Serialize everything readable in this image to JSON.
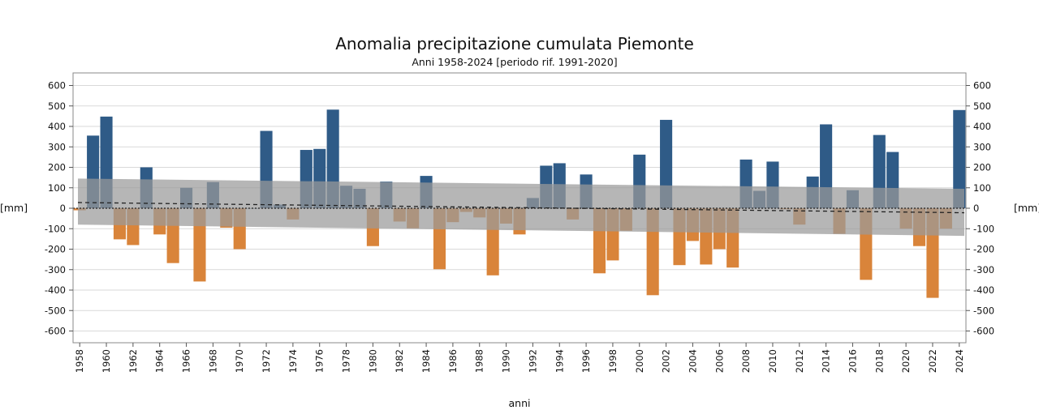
{
  "chart_data": {
    "type": "bar",
    "title": "Anomalia precipitazione cumulata Piemonte",
    "subtitle": "Anni 1958-2024  [periodo rif. 1991-2020]",
    "ylabel": "[mm]",
    "xlabel": "anni",
    "ylim": [
      -670,
      670
    ],
    "yticks": [
      600,
      500,
      400,
      300,
      200,
      100,
      0,
      -100,
      -200,
      -300,
      -400,
      -500,
      -600
    ],
    "grid": true,
    "x": [
      1958,
      1959,
      1960,
      1961,
      1962,
      1963,
      1964,
      1965,
      1966,
      1967,
      1968,
      1969,
      1970,
      1971,
      1972,
      1973,
      1974,
      1975,
      1976,
      1977,
      1978,
      1979,
      1980,
      1981,
      1982,
      1983,
      1984,
      1985,
      1986,
      1987,
      1988,
      1989,
      1990,
      1991,
      1992,
      1993,
      1994,
      1995,
      1996,
      1997,
      1998,
      1999,
      2000,
      2001,
      2002,
      2003,
      2004,
      2005,
      2006,
      2007,
      2008,
      2009,
      2010,
      2011,
      2012,
      2013,
      2014,
      2015,
      2016,
      2017,
      2018,
      2019,
      2020,
      2021,
      2022,
      2023,
      2024
    ],
    "xtick_labels": [
      "1958",
      "1960",
      "1962",
      "1964",
      "1966",
      "1968",
      "1970",
      "1972",
      "1974",
      "1976",
      "1978",
      "1980",
      "1982",
      "1984",
      "1986",
      "1988",
      "1990",
      "1992",
      "1994",
      "1996",
      "1998",
      "2000",
      "2002",
      "2004",
      "2006",
      "2008",
      "2010",
      "2012",
      "2014",
      "2016",
      "2018",
      "2020",
      "2022",
      "2024"
    ],
    "values": [
      -10,
      355,
      448,
      -152,
      -180,
      200,
      -128,
      -268,
      100,
      -358,
      128,
      -95,
      -200,
      0,
      378,
      18,
      -55,
      285,
      290,
      482,
      110,
      95,
      -185,
      130,
      -65,
      -98,
      158,
      -298,
      -68,
      -18,
      -45,
      -328,
      -75,
      -128,
      50,
      208,
      220,
      -55,
      165,
      -318,
      -255,
      -110,
      262,
      -425,
      432,
      -278,
      -160,
      -275,
      -200,
      -290,
      238,
      85,
      228,
      -5,
      -80,
      155,
      410,
      -125,
      88,
      -350,
      358,
      275,
      -100,
      -185,
      -438,
      -100,
      480
    ],
    "colors": {
      "positive": "#2f5b87",
      "negative": "#d9843a",
      "band": "#9a9a9a",
      "grid": "#d9d9d9",
      "trend": "#222222"
    },
    "trend_band": {
      "upper": [
        145,
        95
      ],
      "lower": [
        -80,
        -135
      ]
    },
    "trend_line": [
      28,
      -22
    ]
  }
}
